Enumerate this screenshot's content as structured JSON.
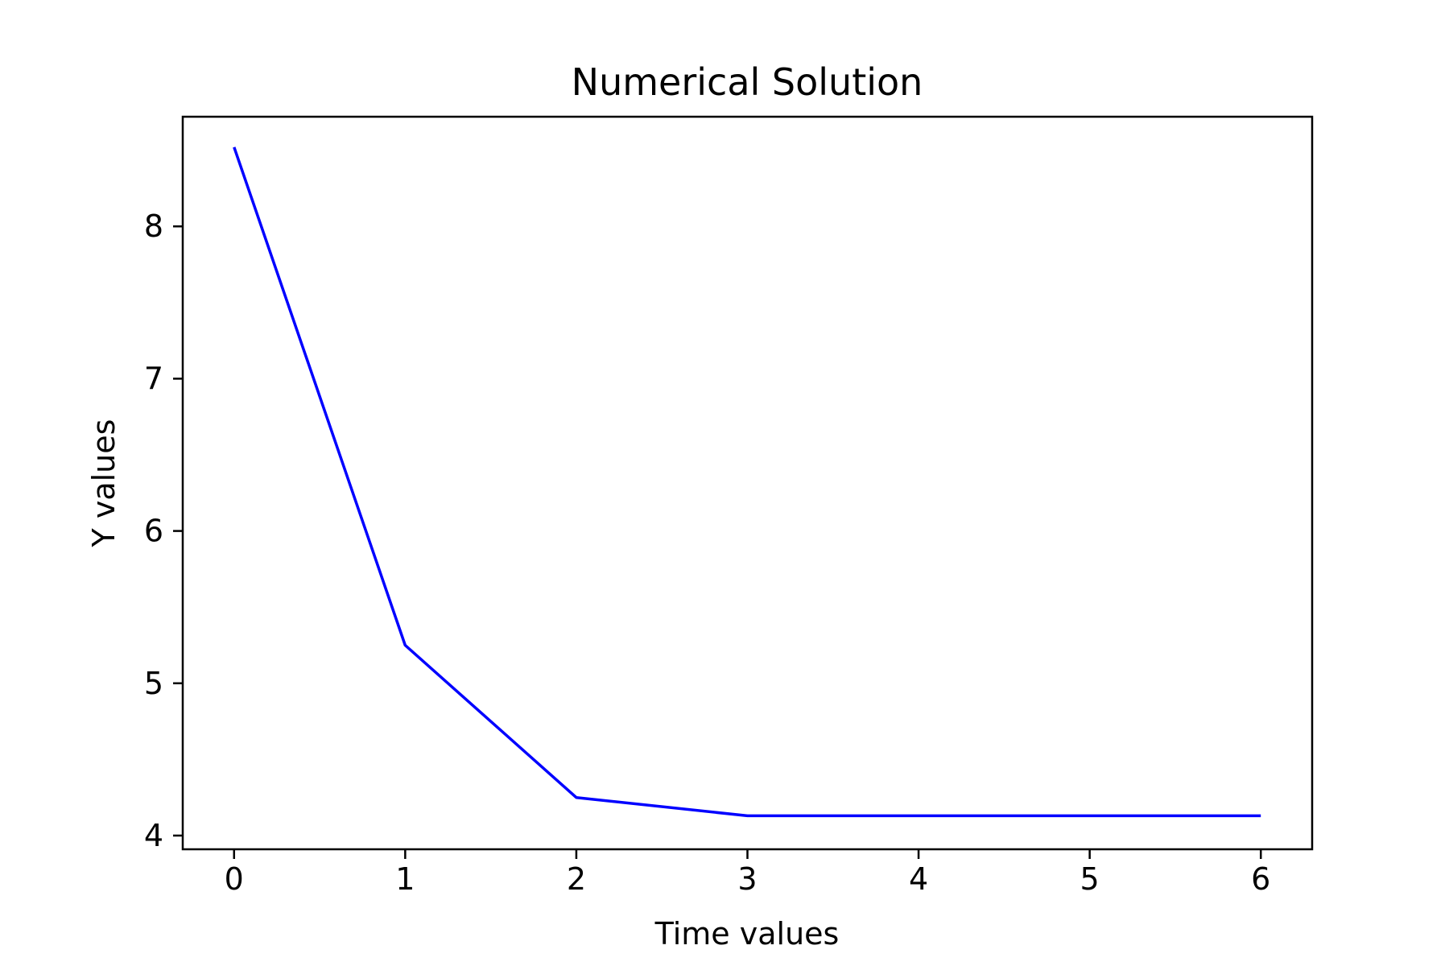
{
  "chart_data": {
    "type": "line",
    "title": "Numerical Solution",
    "xlabel": "Time values",
    "ylabel": "Y values",
    "xlim": [
      -0.3,
      6.3
    ],
    "ylim": [
      3.91,
      8.72
    ],
    "xticks": [
      0,
      1,
      2,
      3,
      4,
      5,
      6
    ],
    "xtick_labels": [
      "0",
      "1",
      "2",
      "3",
      "4",
      "5",
      "6"
    ],
    "yticks": [
      4,
      5,
      6,
      7,
      8
    ],
    "ytick_labels": [
      "4",
      "5",
      "6",
      "7",
      "8"
    ],
    "grid": false,
    "series": [
      {
        "color": "#0000ff",
        "x": [
          0,
          1,
          2,
          3,
          4,
          5,
          6
        ],
        "y": [
          8.52,
          5.25,
          4.25,
          4.13,
          4.13,
          4.13,
          4.13
        ]
      }
    ]
  }
}
